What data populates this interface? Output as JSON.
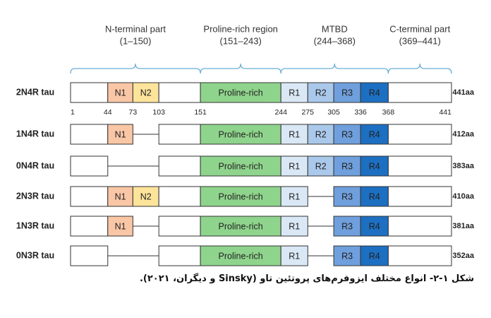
{
  "regions": [
    {
      "name": "N-terminal part",
      "range": "(1–150)"
    },
    {
      "name": "Proline-rich region",
      "range": "(151–243)"
    },
    {
      "name": "MTBD",
      "range": "(244–368)"
    },
    {
      "name": "C-terminal part",
      "range": "(369–441)"
    }
  ],
  "positions": [
    1,
    44,
    73,
    103,
    151,
    244,
    275,
    305,
    336,
    368,
    441
  ],
  "domain_colors": [
    "#f9c7a6",
    "#fde49b",
    "#8fd48c",
    "#dae8f6",
    "#aac8ea",
    "#6f9fdc",
    "#1d6fc2"
  ],
  "isoforms": [
    {
      "label": "2N4R tau",
      "length": "441aa",
      "domains": [
        "N1",
        "N2",
        "Proline-rich",
        "R1",
        "R2",
        "R3",
        "R4"
      ]
    },
    {
      "label": "1N4R tau",
      "length": "412aa",
      "domains": [
        "N1",
        null,
        "Proline-rich",
        "R1",
        "R2",
        "R3",
        "R4"
      ]
    },
    {
      "label": "0N4R tau",
      "length": "383aa",
      "domains": [
        null,
        null,
        "Proline-rich",
        "R1",
        "R2",
        "R3",
        "R4"
      ]
    },
    {
      "label": "2N3R tau",
      "length": "410aa",
      "domains": [
        "N1",
        "N2",
        "Proline-rich",
        "R1",
        null,
        "R3",
        "R4"
      ]
    },
    {
      "label": "1N3R tau",
      "length": "381aa",
      "domains": [
        "N1",
        null,
        "Proline-rich",
        "R1",
        null,
        "R3",
        "R4"
      ]
    },
    {
      "label": "0N3R tau",
      "length": "352aa",
      "domains": [
        null,
        null,
        "Proline-rich",
        "R1",
        null,
        "R3",
        "R4"
      ]
    }
  ],
  "caption": "شکل ۱-۲- انواع مختلف ایزوفرم‌های پروتئین تاو (Sinsky و دیگران، ۲۰۲۱)."
}
